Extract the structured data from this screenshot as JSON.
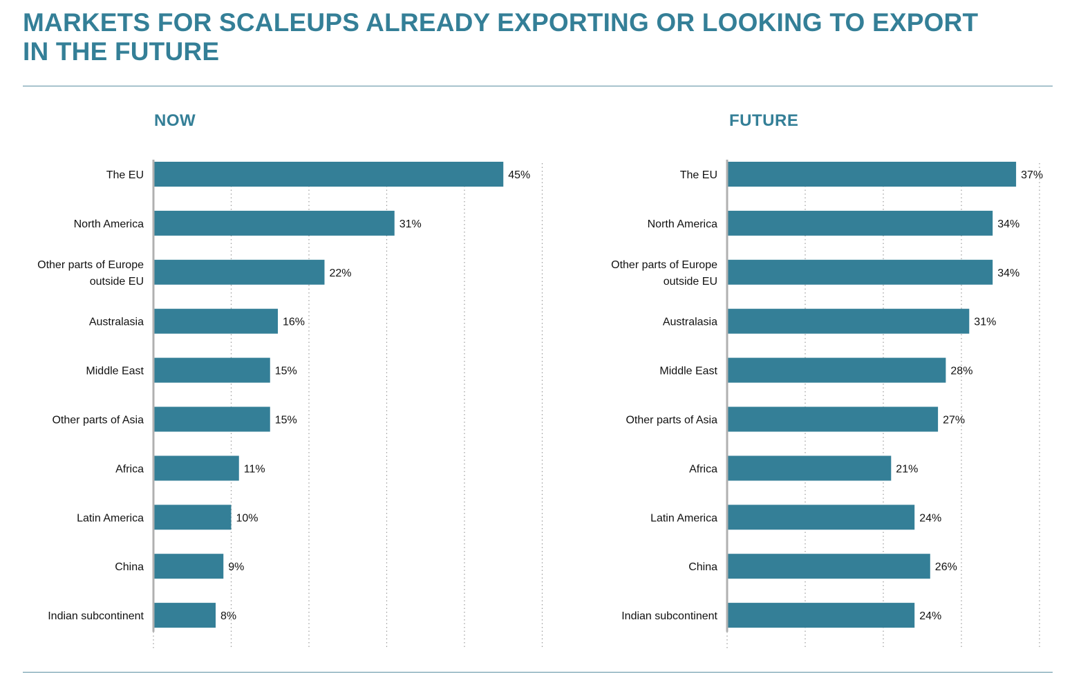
{
  "title": {
    "line1": "MARKETS FOR SCALEUPS ALREADY EXPORTING OR LOOKING TO EXPORT",
    "line2": "IN THE FUTURE"
  },
  "colors": {
    "bar": "#347f97",
    "title": "#347f97",
    "axis": "#b0b0b0",
    "grid": "#9a9a9a"
  },
  "chart_data": [
    {
      "type": "bar",
      "orientation": "horizontal",
      "title": "NOW",
      "unit": "%",
      "categories": [
        "The EU",
        "North America",
        "Other parts of Europe outside EU",
        "Australasia",
        "Middle East",
        "Other parts of Asia",
        "Africa",
        "Latin America",
        "China",
        "Indian subcontinent"
      ],
      "category_lines": [
        [
          "The EU"
        ],
        [
          "North America"
        ],
        [
          "Other parts of Europe",
          "outside EU"
        ],
        [
          "Australasia"
        ],
        [
          "Middle East"
        ],
        [
          "Other parts of Asia"
        ],
        [
          "Africa"
        ],
        [
          "Latin America"
        ],
        [
          "China"
        ],
        [
          "Indian subcontinent"
        ]
      ],
      "values": [
        45,
        31,
        22,
        16,
        15,
        15,
        11,
        10,
        9,
        8
      ],
      "value_labels": [
        "45%",
        "31%",
        "22%",
        "16%",
        "15%",
        "15%",
        "11%",
        "10%",
        "9%",
        "8%"
      ],
      "xlim": [
        0,
        50
      ],
      "grid": true,
      "gridlines": [
        0,
        10,
        20,
        30,
        40,
        50
      ]
    },
    {
      "type": "bar",
      "orientation": "horizontal",
      "title": "FUTURE",
      "unit": "%",
      "categories": [
        "The EU",
        "North America",
        "Other parts of Europe outside EU",
        "Australasia",
        "Middle East",
        "Other parts of Asia",
        "Africa",
        "Latin America",
        "China",
        "Indian subcontinent"
      ],
      "category_lines": [
        [
          "The EU"
        ],
        [
          "North America"
        ],
        [
          "Other parts of Europe",
          "outside EU"
        ],
        [
          "Australasia"
        ],
        [
          "Middle East"
        ],
        [
          "Other parts of Asia"
        ],
        [
          "Africa"
        ],
        [
          "Latin America"
        ],
        [
          "China"
        ],
        [
          "Indian subcontinent"
        ]
      ],
      "values": [
        37,
        34,
        34,
        31,
        28,
        27,
        21,
        24,
        26,
        24
      ],
      "value_labels": [
        "37%",
        "34%",
        "34%",
        "31%",
        "28%",
        "27%",
        "21%",
        "24%",
        "26%",
        "24%"
      ],
      "xlim": [
        0,
        40
      ],
      "grid": true,
      "gridlines": [
        0,
        10,
        20,
        30,
        40
      ]
    }
  ]
}
